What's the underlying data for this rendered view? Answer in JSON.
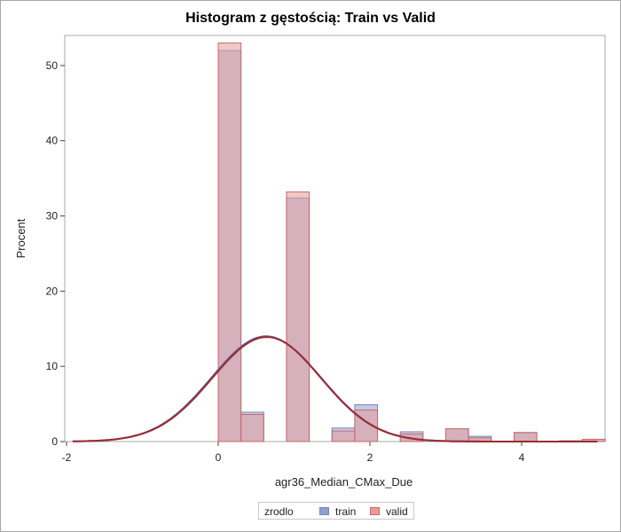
{
  "colors": {
    "train": "#8f9fce",
    "valid": "#e89b99",
    "overlap": "#c58f9c",
    "curve": "#9d2b33",
    "axis": "#444444"
  },
  "chart_data": {
    "type": "bar",
    "title": "Histogram z gęstością: Train vs Valid",
    "xlabel": "agr36_Median_CMax_Due",
    "ylabel": "Procent",
    "xlim": [
      -2.0,
      5.0
    ],
    "ylim": [
      0,
      54
    ],
    "x_ticks": [
      -2,
      0,
      2,
      4
    ],
    "y_ticks": [
      0,
      10,
      20,
      30,
      40,
      50
    ],
    "bin_width": 0.3,
    "bin_starts": [
      0.0,
      0.3,
      0.9,
      1.5,
      1.8,
      2.4,
      3.0,
      3.3,
      3.9,
      4.5,
      4.8
    ],
    "series": [
      {
        "name": "train",
        "values": [
          52.0,
          3.9,
          32.4,
          1.8,
          4.9,
          1.3,
          1.7,
          0.7,
          1.2,
          0.1,
          0.3
        ]
      },
      {
        "name": "valid",
        "values": [
          53.0,
          3.6,
          33.2,
          1.4,
          4.2,
          1.0,
          1.7,
          0.5,
          1.2,
          0.1,
          0.3
        ]
      }
    ],
    "density_curves": [
      {
        "name": "train",
        "mean": 0.63,
        "peak": 14.0
      },
      {
        "name": "valid",
        "mean": 0.64,
        "peak": 13.9
      }
    ],
    "legend": {
      "title": "zrodlo",
      "position": "bottom",
      "items": [
        "train",
        "valid"
      ]
    }
  }
}
